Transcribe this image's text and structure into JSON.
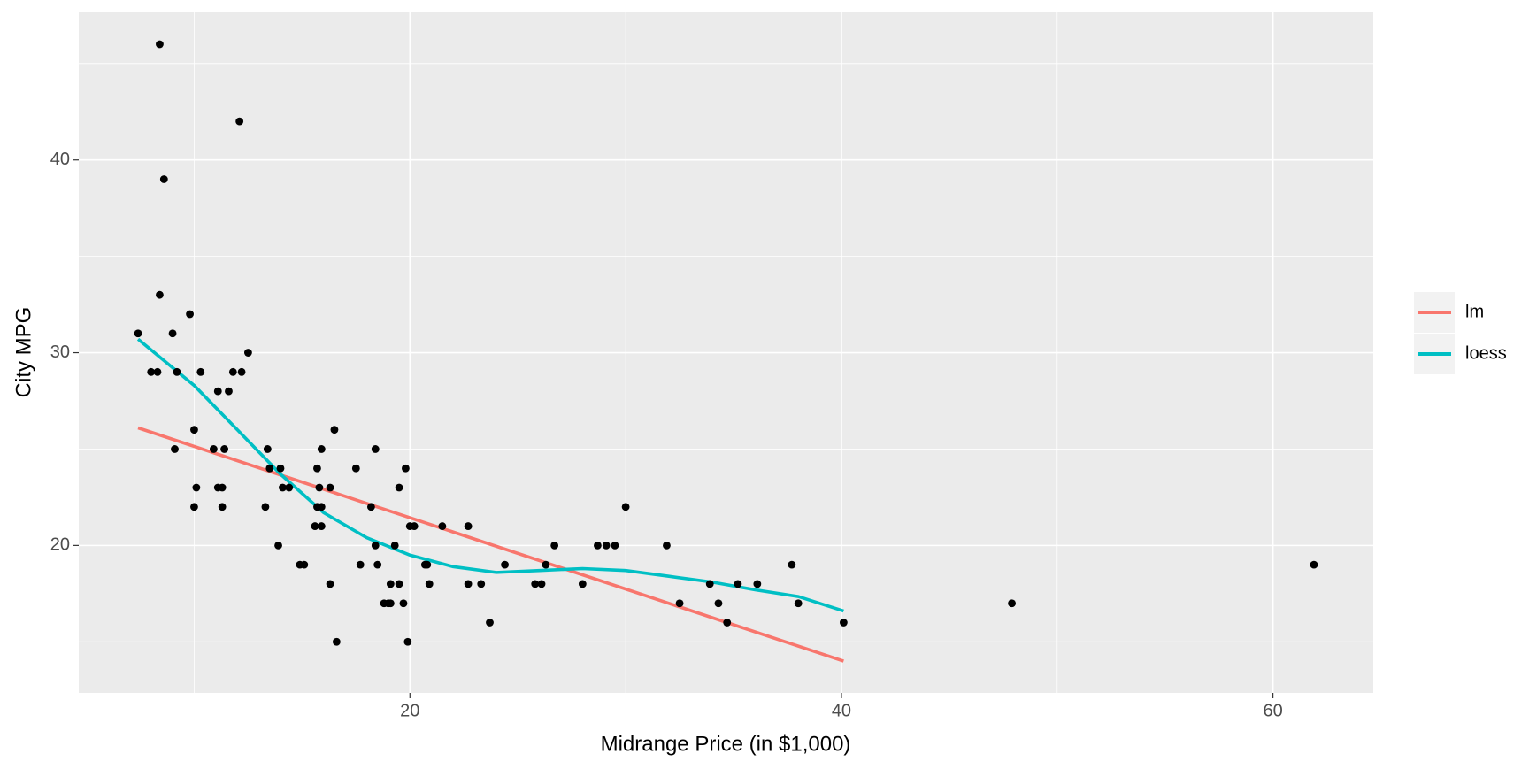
{
  "chart_data": {
    "type": "scatter",
    "xlabel": "Midrange Price (in $1,000)",
    "ylabel": "City MPG",
    "xlim": [
      4.65,
      64.65
    ],
    "ylim": [
      12.35,
      47.7
    ],
    "xticks": [
      20,
      40,
      60
    ],
    "yticks": [
      20,
      30,
      40
    ],
    "xminor_ticks": [
      10,
      30,
      50
    ],
    "yminor_ticks": [
      15,
      25,
      35,
      45
    ],
    "grid": true,
    "point_color": "#000000",
    "legend": "right",
    "x": [
      15.9,
      33.9,
      29.1,
      37.7,
      30.0,
      15.7,
      20.8,
      23.7,
      26.3,
      34.7,
      40.1,
      13.4,
      11.4,
      15.1,
      15.9,
      16.3,
      16.6,
      18.8,
      38.0,
      18.4,
      15.8,
      29.5,
      9.2,
      11.3,
      13.3,
      19.0,
      15.6,
      25.8,
      12.2,
      19.3,
      7.4,
      10.1,
      11.3,
      15.9,
      14.0,
      19.9,
      20.2,
      20.9,
      8.4,
      12.5,
      19.8,
      12.1,
      17.5,
      8.0,
      10.0,
      10.0,
      13.9,
      47.9,
      28.0,
      35.2,
      34.3,
      36.1,
      8.3,
      11.6,
      16.5,
      19.1,
      32.5,
      31.9,
      61.9,
      14.1,
      14.9,
      10.3,
      26.1,
      11.8,
      15.7,
      19.1,
      21.5,
      13.5,
      16.3,
      19.5,
      20.7,
      14.4,
      9.0,
      11.1,
      17.7,
      18.5,
      24.4,
      28.7,
      11.1,
      8.4,
      10.9,
      19.5,
      8.6,
      9.8,
      18.4,
      18.2,
      22.7,
      9.1,
      19.7,
      20.0,
      23.3,
      22.7,
      26.7
    ],
    "y": [
      25,
      18,
      20,
      19,
      22,
      22,
      19,
      16,
      19,
      16,
      16,
      25,
      25,
      19,
      21,
      18,
      15,
      17,
      17,
      20,
      23,
      20,
      29,
      23,
      22,
      17,
      21,
      18,
      29,
      20,
      31,
      23,
      22,
      22,
      24,
      15,
      21,
      18,
      46,
      30,
      24,
      42,
      24,
      29,
      22,
      26,
      20,
      17,
      18,
      18,
      17,
      18,
      29,
      28,
      26,
      18,
      17,
      20,
      19,
      23,
      19,
      29,
      18,
      29,
      24,
      17,
      21,
      24,
      23,
      18,
      19,
      23,
      31,
      23,
      19,
      19,
      19,
      20,
      28,
      33,
      25,
      23,
      39,
      32,
      25,
      22,
      18,
      25,
      17,
      21,
      18,
      21,
      20
    ],
    "series": [
      {
        "name": "lm",
        "color": "#F8766D",
        "x": [
          7.4,
          40.1
        ],
        "values": [
          26.1,
          14.0
        ]
      },
      {
        "name": "loess",
        "color": "#00BFC4",
        "x": [
          7.4,
          10,
          12,
          14,
          16,
          18,
          20,
          22,
          24,
          26,
          28,
          30,
          32,
          34,
          36,
          38,
          40.1
        ],
        "values": [
          30.7,
          28.3,
          26.0,
          23.7,
          21.7,
          20.4,
          19.5,
          18.9,
          18.6,
          18.7,
          18.8,
          18.7,
          18.4,
          18.1,
          17.7,
          17.35,
          16.6
        ]
      }
    ]
  }
}
